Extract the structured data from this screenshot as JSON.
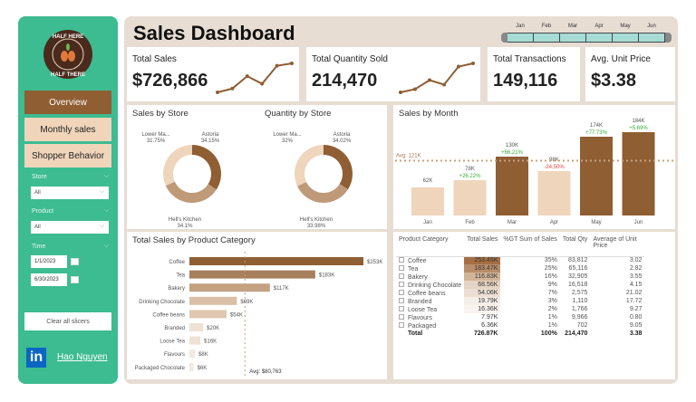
{
  "sidebar": {
    "logo_text": "HALF HERE HALF THERE",
    "nav": [
      {
        "label": "Overview",
        "active": true
      },
      {
        "label": "Monthly sales"
      },
      {
        "label": "Shopper Behavior"
      }
    ],
    "filters": {
      "store_label": "Store",
      "store_value": "All",
      "product_label": "Product",
      "product_value": "All",
      "time_label": "Time",
      "date_from": "1/1/2023",
      "date_to": "6/30/2023"
    },
    "clear_label": "Clear all slicers",
    "author": "Hao Nguyen",
    "linkedin_text": "in"
  },
  "header": {
    "title": "Sales Dashboard",
    "months": [
      "Jan",
      "Feb",
      "Mar",
      "Apr",
      "May",
      "Jun"
    ]
  },
  "kpis": [
    {
      "label": "Total Sales",
      "value": "$726,866",
      "sparkline": [
        62,
        78,
        130,
        98,
        174,
        184
      ]
    },
    {
      "label": "Total Quantity Sold",
      "value": "214,470",
      "sparkline": [
        30,
        35,
        49,
        42,
        70,
        75
      ]
    },
    {
      "label": "Total Transactions",
      "value": "149,116"
    },
    {
      "label": "Avg. Unit Price",
      "value": "$3.38"
    }
  ],
  "colors": {
    "dark": "#8f5e33",
    "mid": "#bf9a78",
    "light": "#efd5bc",
    "pos": "#3aaa3a",
    "neg": "#e8413c",
    "sidebar": "#3dbb91",
    "panel": "#e8ddd3"
  },
  "chart_data": [
    {
      "type": "pie",
      "title": "Sales by Store",
      "donut": true,
      "categories": [
        "Astoria",
        "Hell's Kitchen",
        "Lower Ma..."
      ],
      "values": [
        34.15,
        34.1,
        31.75
      ],
      "labels": [
        "34.15%",
        "34.1%",
        "31.75%"
      ]
    },
    {
      "type": "pie",
      "title": "Quantity by Store",
      "donut": true,
      "categories": [
        "Astoria",
        "Hell's Kitchen",
        "Lower Ma..."
      ],
      "values": [
        34.02,
        33.98,
        32
      ],
      "labels": [
        "34.02%",
        "33.98%",
        "32%"
      ]
    },
    {
      "type": "bar",
      "title": "Sales by Month",
      "categories": [
        "Jan",
        "Feb",
        "Mar",
        "Apr",
        "May",
        "Jun"
      ],
      "values": [
        62,
        78,
        130,
        98,
        174,
        184
      ],
      "value_labels": [
        "62K",
        "78K",
        "130K",
        "98K",
        "174K",
        "184K"
      ],
      "changes": [
        "",
        "+26.22%",
        "+66.21%",
        "-24.50%",
        "+77.73%",
        "+5.69%"
      ],
      "average": 121,
      "average_label": "Avg: 121K",
      "ylim": [
        0,
        200
      ]
    },
    {
      "type": "bar",
      "orientation": "horizontal",
      "title": "Total Sales by Product Category",
      "categories": [
        "Coffee",
        "Tea",
        "Bakery",
        "Drinking Chocolate",
        "Coffee beans",
        "Branded",
        "Loose Tea",
        "Flavours",
        "Packaged Chocolate"
      ],
      "values": [
        253,
        183,
        117,
        69,
        54,
        20,
        16,
        8,
        6
      ],
      "value_labels": [
        "$253K",
        "$183K",
        "$117K",
        "$69K",
        "$54K",
        "$20K",
        "$16K",
        "$8K",
        "$6K"
      ],
      "average": 80.763,
      "average_label": "Avg: $80,763"
    },
    {
      "type": "table",
      "columns": [
        "Product Category",
        "Total Sales",
        "%GT Sum of Sales",
        "Total Qty",
        "Average of Unit Price"
      ],
      "rows": [
        [
          "Coffee",
          "253.45K",
          "35%",
          "83,812",
          "3.02"
        ],
        [
          "Tea",
          "183.47K",
          "25%",
          "65,116",
          "2.82"
        ],
        [
          "Bakery",
          "116.83K",
          "16%",
          "32,905",
          "3.55"
        ],
        [
          "Drinking Chocolate",
          "68.56K",
          "9%",
          "16,518",
          "4.15"
        ],
        [
          "Coffee beans",
          "54.06K",
          "7%",
          "2,575",
          "21.02"
        ],
        [
          "Branded",
          "19.79K",
          "3%",
          "1,110",
          "17.72"
        ],
        [
          "Loose Tea",
          "16.36K",
          "2%",
          "1,766",
          "9.27"
        ],
        [
          "Flavours",
          "7.97K",
          "1%",
          "9,966",
          "0.80"
        ],
        [
          "Packaged",
          "6.36K",
          "1%",
          "702",
          "9.05"
        ]
      ],
      "total": [
        "Total",
        "726.87K",
        "100%",
        "214,470",
        "3.38"
      ]
    }
  ]
}
